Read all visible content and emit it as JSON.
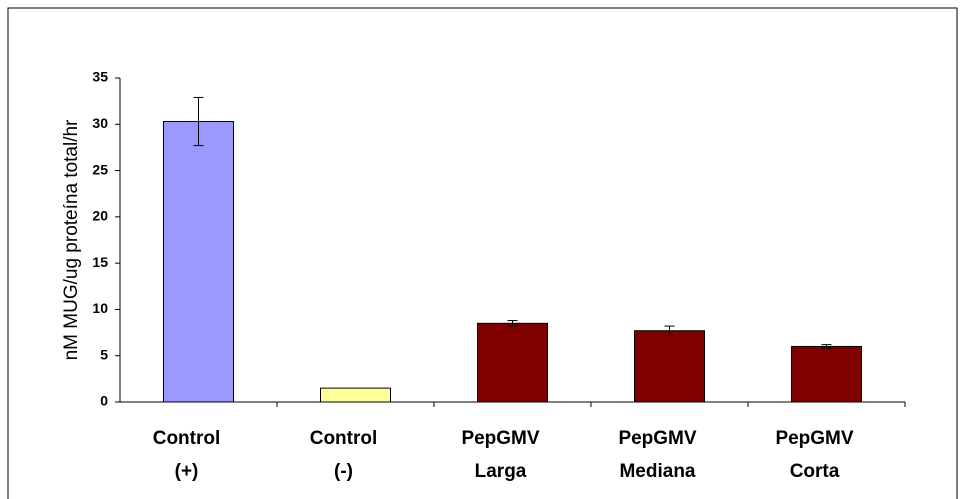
{
  "chart_data": {
    "type": "bar",
    "y_label": "nM MUG/ug proteína total/hr",
    "categories": [
      [
        "Control",
        "(+)"
      ],
      [
        "Control",
        "(-)"
      ],
      [
        "PepGMV",
        "Larga"
      ],
      [
        "PepGMV",
        "Mediana"
      ],
      [
        "PepGMV",
        "Corta"
      ]
    ],
    "values": [
      30.3,
      1.5,
      8.5,
      7.7,
      6.0
    ],
    "errors": [
      2.6,
      null,
      0.3,
      0.5,
      0.2
    ],
    "colors": [
      "#9999ff",
      "#ffff99",
      "#800000",
      "#800000",
      "#800000"
    ],
    "ylim": [
      0,
      35
    ],
    "yticks": [
      0,
      5,
      10,
      15,
      20,
      25,
      30,
      35
    ],
    "grid": false
  }
}
